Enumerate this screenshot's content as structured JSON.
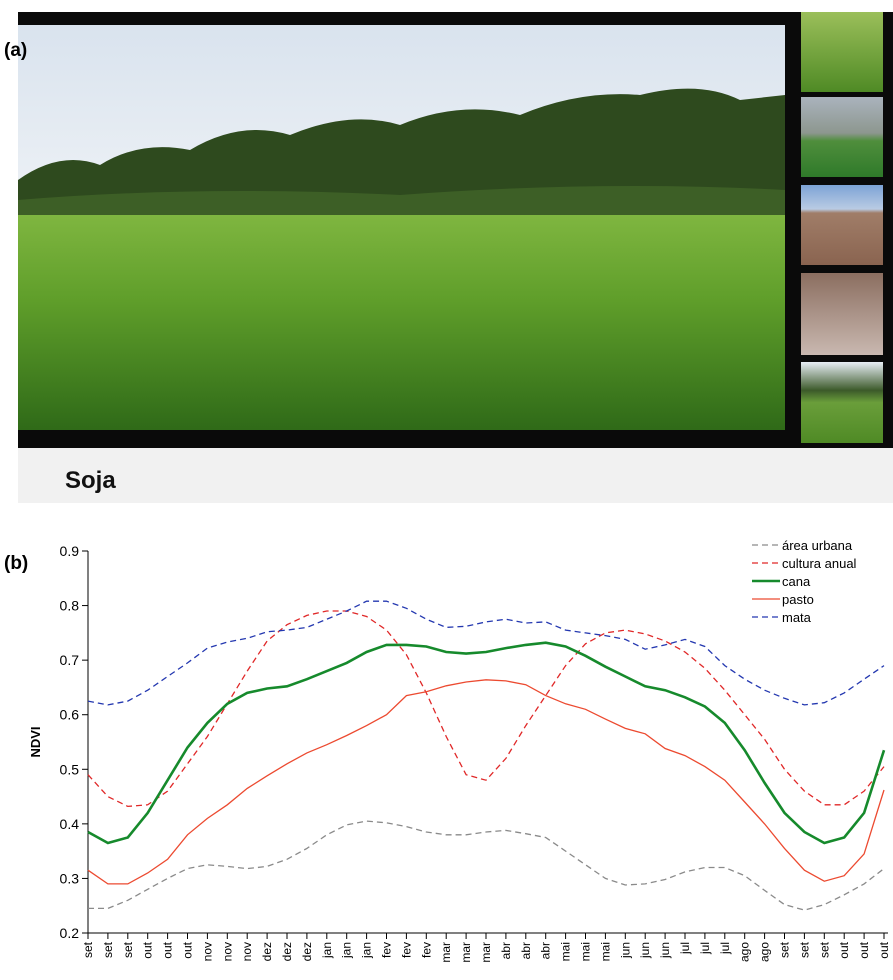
{
  "panel_a": {
    "label": "(a)",
    "caption": "Soja"
  },
  "panel_b_label": "(b)",
  "chart_data": {
    "type": "line",
    "y_label": "NDVI",
    "categories": [
      "set",
      "set",
      "set",
      "out",
      "out",
      "out",
      "nov",
      "nov",
      "nov",
      "dez",
      "dez",
      "dez",
      "jan",
      "jan",
      "jan",
      "fev",
      "fev",
      "fev",
      "mar",
      "mar",
      "mar",
      "abr",
      "abr",
      "abr",
      "mai",
      "mai",
      "mai",
      "jun",
      "jun",
      "jun",
      "jul",
      "jul",
      "jul",
      "ago",
      "ago",
      "set",
      "set",
      "set",
      "out",
      "out",
      "out"
    ],
    "ylim": [
      0.2,
      0.9
    ],
    "yticks": [
      0.2,
      0.3,
      0.4,
      0.5,
      0.6,
      0.7,
      0.8,
      0.9
    ],
    "legend": "upper right",
    "series": [
      {
        "name": "área urbana",
        "color": "#8a8a8a",
        "style": "dashed",
        "values": [
          0.245,
          0.245,
          0.26,
          0.28,
          0.3,
          0.318,
          0.325,
          0.322,
          0.318,
          0.322,
          0.335,
          0.355,
          0.38,
          0.398,
          0.405,
          0.402,
          0.395,
          0.385,
          0.38,
          0.38,
          0.385,
          0.388,
          0.382,
          0.375,
          0.35,
          0.325,
          0.3,
          0.288,
          0.29,
          0.298,
          0.312,
          0.32,
          0.32,
          0.305,
          0.278,
          0.252,
          0.242,
          0.252,
          0.27,
          0.29,
          0.318
        ]
      },
      {
        "name": "cultura anual",
        "color": "#e02828",
        "style": "dashed",
        "values": [
          0.49,
          0.45,
          0.432,
          0.435,
          0.46,
          0.51,
          0.56,
          0.62,
          0.68,
          0.735,
          0.765,
          0.782,
          0.79,
          0.79,
          0.78,
          0.755,
          0.71,
          0.64,
          0.56,
          0.49,
          0.48,
          0.52,
          0.58,
          0.635,
          0.69,
          0.73,
          0.75,
          0.755,
          0.748,
          0.735,
          0.715,
          0.685,
          0.645,
          0.6,
          0.555,
          0.5,
          0.46,
          0.435,
          0.435,
          0.46,
          0.505
        ]
      },
      {
        "name": "cana",
        "color": "#168a2c",
        "style": "solid",
        "width": 2.6,
        "values": [
          0.385,
          0.365,
          0.375,
          0.42,
          0.48,
          0.54,
          0.585,
          0.62,
          0.64,
          0.648,
          0.652,
          0.665,
          0.68,
          0.695,
          0.715,
          0.728,
          0.728,
          0.725,
          0.715,
          0.712,
          0.715,
          0.722,
          0.728,
          0.732,
          0.725,
          0.708,
          0.688,
          0.67,
          0.652,
          0.645,
          0.632,
          0.615,
          0.585,
          0.535,
          0.475,
          0.42,
          0.385,
          0.365,
          0.375,
          0.42,
          0.535
        ]
      },
      {
        "name": "pasto",
        "color": "#ec4a30",
        "style": "solid",
        "values": [
          0.315,
          0.29,
          0.29,
          0.31,
          0.335,
          0.38,
          0.41,
          0.435,
          0.465,
          0.488,
          0.51,
          0.53,
          0.545,
          0.562,
          0.58,
          0.6,
          0.635,
          0.642,
          0.653,
          0.66,
          0.664,
          0.662,
          0.655,
          0.635,
          0.62,
          0.61,
          0.592,
          0.575,
          0.565,
          0.538,
          0.525,
          0.505,
          0.48,
          0.44,
          0.4,
          0.355,
          0.315,
          0.295,
          0.305,
          0.345,
          0.462
        ]
      },
      {
        "name": "mata",
        "color": "#2438b0",
        "style": "dashed",
        "values": [
          0.625,
          0.618,
          0.625,
          0.645,
          0.67,
          0.695,
          0.722,
          0.733,
          0.74,
          0.752,
          0.755,
          0.76,
          0.775,
          0.79,
          0.808,
          0.808,
          0.795,
          0.775,
          0.76,
          0.762,
          0.77,
          0.775,
          0.768,
          0.77,
          0.755,
          0.75,
          0.745,
          0.738,
          0.72,
          0.728,
          0.738,
          0.725,
          0.69,
          0.665,
          0.645,
          0.63,
          0.618,
          0.622,
          0.64,
          0.665,
          0.69
        ]
      }
    ]
  }
}
